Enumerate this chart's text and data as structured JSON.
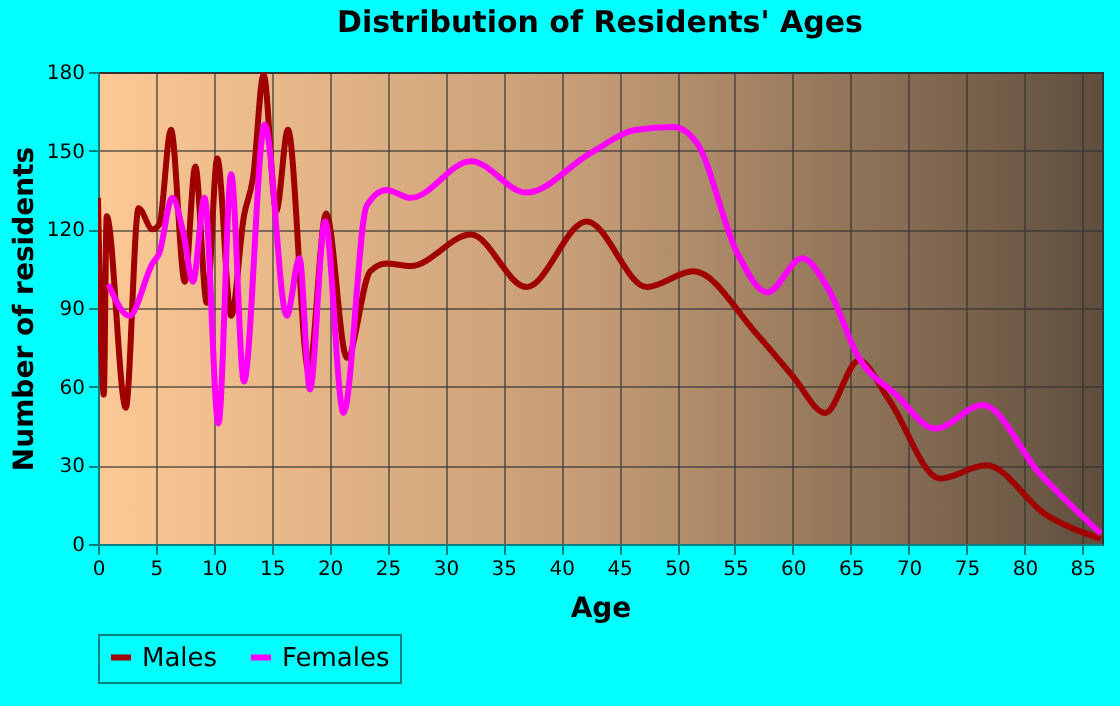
{
  "chart_data": {
    "type": "line",
    "title": "Distribution of Residents' Ages",
    "xlabel": "Age",
    "ylabel": "Number of residents",
    "xlim": [
      0,
      86.7
    ],
    "xticks": [
      0,
      5,
      10,
      15,
      20,
      25,
      30,
      35,
      40,
      45,
      50,
      55,
      60,
      65,
      70,
      75,
      80,
      85
    ],
    "ylim": [
      0,
      180
    ],
    "yticks": [
      0,
      30,
      60,
      90,
      120,
      150,
      180
    ],
    "grid": true,
    "legend": "bottom",
    "series": [
      {
        "name": "Males",
        "color": "#a00000",
        "x": [
          0,
          0.5,
          0.75,
          2.4,
          3.5,
          4.7,
          5.3,
          6.3,
          7.5,
          8.4,
          9.4,
          10.3,
          11.5,
          12.6,
          13.4,
          14.3,
          15.4,
          16.4,
          18.2,
          19.7,
          21.5,
          23.5,
          24.9,
          27,
          32.2,
          37,
          42.2,
          47.4,
          51.4,
          56.9,
          60,
          62.8,
          65.7,
          68.3,
          72.7,
          76.7,
          81.9,
          86.6
        ],
        "values": [
          132,
          57,
          125,
          52,
          128,
          120,
          122,
          158,
          100,
          144,
          92,
          147,
          87,
          125,
          140,
          179,
          127,
          158,
          66,
          126,
          71,
          104,
          107,
          106,
          118,
          98,
          123,
          98,
          104,
          80,
          64,
          50,
          70,
          55,
          25,
          30,
          11,
          2
        ]
      },
      {
        "name": "Females",
        "color": "#ff00ff",
        "x": [
          0.9,
          2.7,
          4.7,
          5.3,
          6.4,
          7.4,
          8.2,
          9.2,
          10.4,
          11.5,
          12.6,
          14.4,
          16.3,
          17.4,
          18.3,
          19.6,
          21.2,
          23.2,
          24.9,
          27,
          32.2,
          37,
          42.5,
          46.5,
          49.7,
          51.7,
          55.2,
          57.8,
          60.8,
          63.1,
          65.7,
          68.9,
          72.3,
          76.4,
          81.3,
          86.6
        ],
        "values": [
          99,
          87,
          107,
          111,
          132,
          118,
          100,
          132,
          46,
          141,
          62,
          160,
          87,
          109,
          59,
          123,
          50,
          129,
          135,
          132,
          146,
          134,
          149,
          158,
          159,
          153,
          111,
          96,
          109,
          97,
          71,
          57,
          44,
          53,
          27,
          4
        ]
      }
    ]
  }
}
